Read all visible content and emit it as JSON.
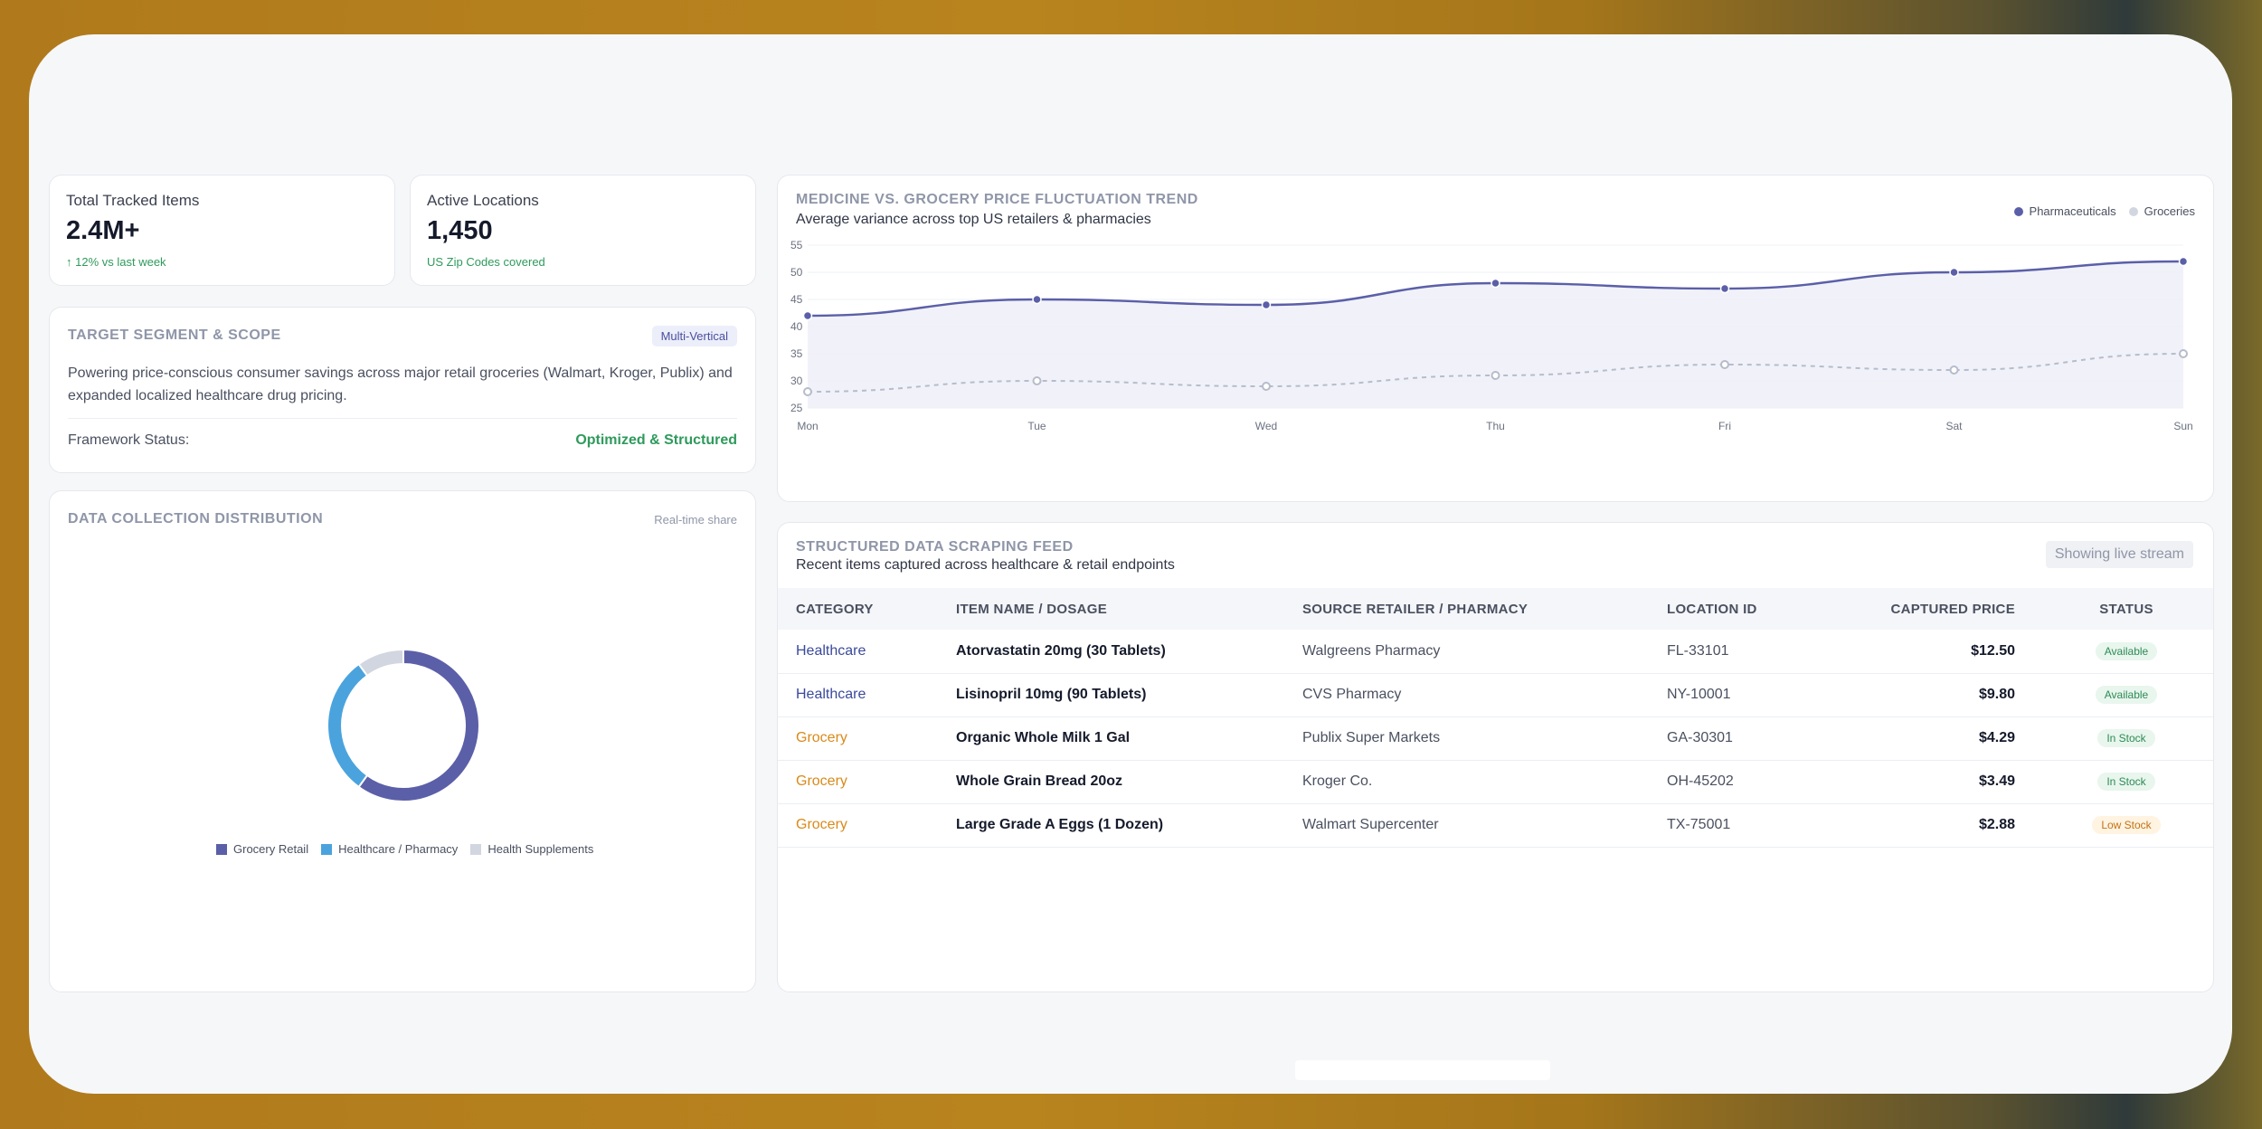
{
  "kpis": [
    {
      "label": "Total Tracked Items",
      "value": "2.4M+",
      "note": "↑ 12% vs last week"
    },
    {
      "label": "Active Locations",
      "value": "1,450",
      "note": "US Zip Codes covered"
    }
  ],
  "scope": {
    "title": "TARGET SEGMENT & SCOPE",
    "badge": "Multi-Vertical",
    "description": "Powering price-conscious consumer savings across major retail groceries (Walmart, Kroger, Publix) and expanded localized healthcare drug pricing.",
    "status_label": "Framework Status:",
    "status_value": "Optimized & Structured"
  },
  "distribution": {
    "title": "DATA COLLECTION DISTRIBUTION",
    "tag": "Real-time share",
    "legend": [
      "Grocery Retail",
      "Healthcare / Pharmacy",
      "Health Supplements"
    ]
  },
  "trend": {
    "title": "MEDICINE VS. GROCERY PRICE FLUCTUATION TREND",
    "subtitle": "Average variance across top US retailers & pharmacies",
    "legend": [
      "Pharmaceuticals",
      "Groceries"
    ]
  },
  "feed": {
    "title": "STRUCTURED DATA SCRAPING FEED",
    "subtitle": "Recent items captured across healthcare & retail endpoints",
    "button": "Showing live stream",
    "columns": [
      "CATEGORY",
      "ITEM NAME / DOSAGE",
      "SOURCE RETAILER / PHARMACY",
      "LOCATION ID",
      "CAPTURED PRICE",
      "STATUS"
    ],
    "rows": [
      {
        "category": "Healthcare",
        "item": "Atorvastatin 20mg (30 Tablets)",
        "source": "Walgreens Pharmacy",
        "location": "FL-33101",
        "price": "$12.50",
        "status": "Available"
      },
      {
        "category": "Healthcare",
        "item": "Lisinopril 10mg (90 Tablets)",
        "source": "CVS Pharmacy",
        "location": "NY-10001",
        "price": "$9.80",
        "status": "Available"
      },
      {
        "category": "Grocery",
        "item": "Organic Whole Milk 1 Gal",
        "source": "Publix Super Markets",
        "location": "GA-30301",
        "price": "$4.29",
        "status": "In Stock"
      },
      {
        "category": "Grocery",
        "item": "Whole Grain Bread 20oz",
        "source": "Kroger Co.",
        "location": "OH-45202",
        "price": "$3.49",
        "status": "In Stock"
      },
      {
        "category": "Grocery",
        "item": "Large Grade A Eggs (1 Dozen)",
        "source": "Walmart Supercenter",
        "location": "TX-75001",
        "price": "$2.88",
        "status": "Low Stock"
      }
    ]
  },
  "colors": {
    "pharma": "#5b5fa8",
    "grocery_line": "#b7bccb",
    "grocery_retail": "#5b5fa8",
    "healthcare": "#4ba3dd",
    "supplements": "#d2d6e0",
    "success": "#2f9a5c"
  },
  "chart_data": [
    {
      "type": "line",
      "x": [
        "Mon",
        "Tue",
        "Wed",
        "Thu",
        "Fri",
        "Sat",
        "Sun"
      ],
      "series": [
        {
          "name": "Pharmaceuticals",
          "values": [
            42,
            45,
            44,
            48,
            47,
            50,
            52
          ]
        },
        {
          "name": "Groceries",
          "values": [
            28,
            30,
            29,
            31,
            33,
            32,
            35
          ]
        }
      ],
      "ylim": [
        25,
        55
      ],
      "yticks": [
        25,
        30,
        35,
        40,
        45,
        50,
        55
      ],
      "legend_position": "top-right"
    },
    {
      "type": "pie",
      "categories": [
        "Grocery Retail",
        "Healthcare / Pharmacy",
        "Health Supplements"
      ],
      "values": [
        60,
        30,
        10
      ],
      "legend_position": "bottom"
    }
  ]
}
